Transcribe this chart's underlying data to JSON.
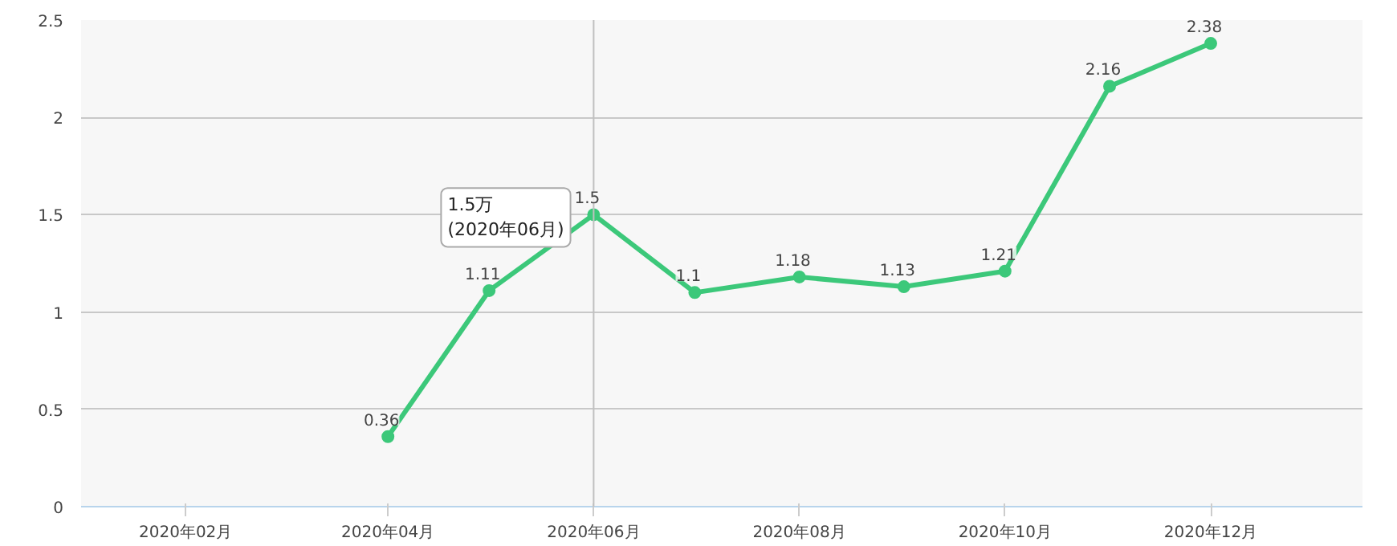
{
  "chart_data": {
    "type": "line",
    "x": [
      "2020-04",
      "2020-05",
      "2020-06",
      "2020-07",
      "2020-08",
      "2020-09",
      "2020-10",
      "2020-11",
      "2020-12"
    ],
    "series": [
      {
        "color": "#3cc87a",
        "values": [
          0.36,
          1.11,
          1.5,
          1.1,
          1.18,
          1.13,
          1.21,
          2.16,
          2.38
        ]
      }
    ],
    "xlim": [
      "2020-01",
      "2021-01-15"
    ],
    "xticks": [
      {
        "value": "2020-02",
        "label": "2020年02月"
      },
      {
        "value": "2020-04",
        "label": "2020年04月"
      },
      {
        "value": "2020-06",
        "label": "2020年06月"
      },
      {
        "value": "2020-08",
        "label": "2020年08月"
      },
      {
        "value": "2020-10",
        "label": "2020年10月"
      },
      {
        "value": "2020-12",
        "label": "2020年12月"
      }
    ],
    "ylim": [
      0,
      2.5
    ],
    "yticks": [
      0,
      0.5,
      1,
      1.5,
      2,
      2.5
    ],
    "grid": "y",
    "marker": "circle",
    "line_style": "solid",
    "data_labels": true,
    "ref_lines": [
      {
        "axis": "x",
        "value": "2020-06",
        "label": null,
        "color": "#c0c0c0"
      }
    ],
    "annotations": [
      {
        "text": "1.5万\n(2020年06月)",
        "x": "2020-06",
        "y": 1.5
      }
    ]
  }
}
